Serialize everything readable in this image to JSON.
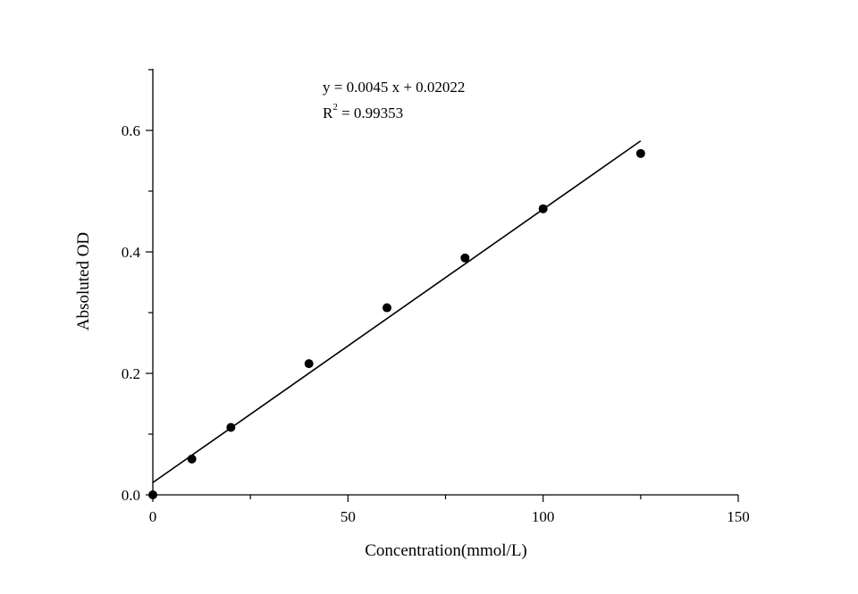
{
  "chart_data": {
    "type": "scatter",
    "xlabel": "Concentration(mmol/L)",
    "ylabel": "Absoluted OD",
    "xlim": [
      0,
      150
    ],
    "ylim": [
      0,
      0.7
    ],
    "x_ticks": [
      0,
      50,
      100,
      150
    ],
    "x_tick_labels": [
      "0",
      "50",
      "100",
      "150"
    ],
    "y_ticks": [
      0.0,
      0.2,
      0.4,
      0.6
    ],
    "y_tick_labels": [
      "0.0",
      "0.2",
      "0.4",
      "0.6"
    ],
    "grid": false,
    "series": [
      {
        "x": [
          0,
          10,
          20,
          40,
          60,
          80,
          100,
          125
        ],
        "y": [
          0.0,
          0.059,
          0.111,
          0.216,
          0.308,
          0.39,
          0.471,
          0.562
        ],
        "color": "#000000"
      }
    ],
    "fit_line": {
      "slope": 0.0045,
      "intercept": 0.02022,
      "x_range": [
        0,
        125
      ],
      "color": "#000000"
    },
    "annotation": {
      "equation": "y = 0.0045 x + 0.02022",
      "r2_base": "R",
      "r2_sup": "2",
      "r2_value": " = 0.99353"
    }
  }
}
